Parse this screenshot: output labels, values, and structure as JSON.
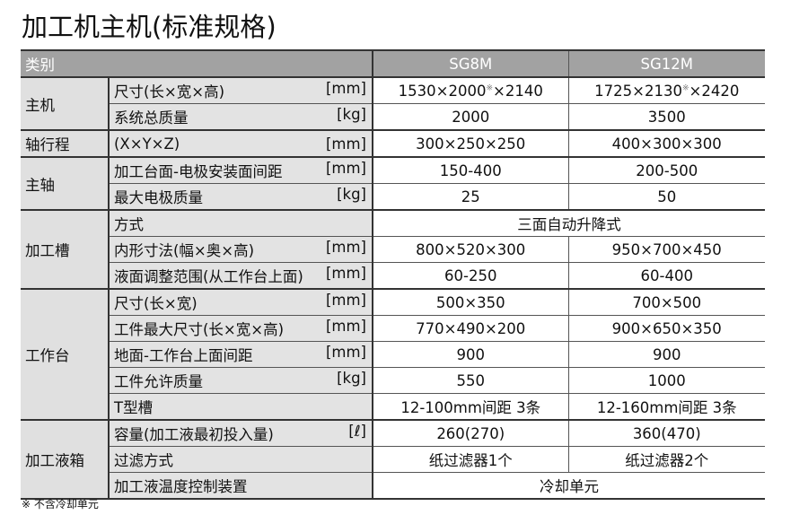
{
  "title": "加工机主机(标准规格)",
  "header": {
    "category": "类别",
    "models": [
      "SG8M",
      "SG12M"
    ]
  },
  "rows": [
    {
      "group": "主机",
      "item": "尺寸(长×宽×高)",
      "unit": "[mm]",
      "v1a": "1530×2000",
      "v1b": "×2140",
      "v2a": "1725×2130",
      "v2b": "×2420",
      "mark": "※"
    },
    {
      "item": "系统总质量",
      "unit": "[kg]",
      "v1": "2000",
      "v2": "3500"
    },
    {
      "group": "轴行程",
      "item": "(X×Y×Z)",
      "unit": "[mm]",
      "v1": "300×250×250",
      "v2": "400×300×300"
    },
    {
      "group": "主轴",
      "item": "加工台面-电极安装面间距",
      "unit": "[mm]",
      "v1": "150-400",
      "v2": "200-500"
    },
    {
      "item": "最大电极质量",
      "unit": "[kg]",
      "v1": "25",
      "v2": "50"
    },
    {
      "group": "加工槽",
      "item": "方式",
      "v": "三面自动升降式"
    },
    {
      "item": "内形寸法(幅×奥×高)",
      "unit": "[mm]",
      "v1": "800×520×300",
      "v2": "950×700×450"
    },
    {
      "item": "液面调整范围(从工作台上面)",
      "unit": "[mm]",
      "v1": "60-250",
      "v2": "60-400"
    },
    {
      "group": "工作台",
      "item": "尺寸(长×宽)",
      "unit": "[mm]",
      "v1": "500×350",
      "v2": "700×500"
    },
    {
      "item": "工件最大尺寸(长×宽×高)",
      "unit": "[mm]",
      "v1": "770×490×200",
      "v2": "900×650×350"
    },
    {
      "item": "地面-工作台上面间距",
      "unit": "[mm]",
      "v1": "900",
      "v2": "900"
    },
    {
      "item": "工件允许质量",
      "unit": "[kg]",
      "v1": "550",
      "v2": "1000"
    },
    {
      "item": "T型槽",
      "v1": "12-100mm间距 3条",
      "v2": "12-160mm间距 3条"
    },
    {
      "group": "加工液箱",
      "item": "容量(加工液最初投入量)",
      "unit": "[ℓ]",
      "v1": "260(270)",
      "v2": "360(470)"
    },
    {
      "item": "过滤方式",
      "v1": "纸过滤器1个",
      "v2": "纸过滤器2个"
    },
    {
      "item": "加工液温度控制装置",
      "v": "冷却单元"
    }
  ],
  "footnote": "※ 不含冷却单元"
}
